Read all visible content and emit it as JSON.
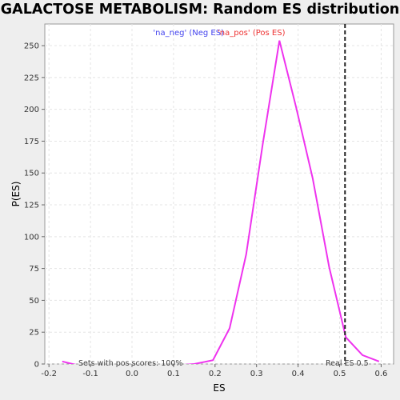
{
  "chart_data": {
    "type": "line",
    "title": "GALACTOSE METABOLISM: Random ES distribution",
    "xlabel": "ES",
    "ylabel": "P(ES)",
    "xlim": [
      -0.21,
      0.63
    ],
    "ylim": [
      0,
      267
    ],
    "xticks": [
      -0.2,
      -0.1,
      0.0,
      0.1,
      0.2,
      0.3,
      0.4,
      0.5,
      0.6
    ],
    "xtick_labels": [
      "-0.2",
      "-0.1",
      "0.0",
      "0.1",
      "0.2",
      "0.3",
      "0.4",
      "0.5",
      "0.6"
    ],
    "yticks": [
      0,
      25,
      50,
      75,
      100,
      125,
      150,
      175,
      200,
      225,
      250
    ],
    "ytick_labels": [
      "0",
      "25",
      "50",
      "75",
      "100",
      "125",
      "150",
      "175",
      "200",
      "225",
      "250"
    ],
    "grid": true,
    "legend": [
      {
        "label": "'na_neg' (Neg ES)",
        "color": "#4444ee"
      },
      {
        "label": "'na_pos' (Pos ES)",
        "color": "#ee3333"
      }
    ],
    "legend_position": "top-center",
    "series": [
      {
        "name": "'na_pos' (Pos ES)",
        "color": "#ee33ee",
        "x": [
          -0.168,
          -0.13,
          -0.09,
          -0.05,
          -0.01,
          0.03,
          0.07,
          0.11,
          0.15,
          0.195,
          0.235,
          0.275,
          0.315,
          0.355,
          0.395,
          0.435,
          0.475,
          0.515,
          0.555,
          0.595
        ],
        "y": [
          2,
          -1,
          -1,
          -1,
          -1,
          -1,
          -1,
          -1,
          0,
          3,
          28,
          86,
          173,
          254,
          202,
          146,
          76,
          21,
          7,
          2
        ]
      }
    ],
    "annotations": [
      {
        "text": "Sets with pos scores: 100%",
        "color": "#4b2b5b"
      },
      {
        "text": "Real ES 0.5",
        "color": "#444444"
      }
    ],
    "reference_line": {
      "x": 0.513,
      "style": "dashed",
      "color": "#222222"
    }
  }
}
